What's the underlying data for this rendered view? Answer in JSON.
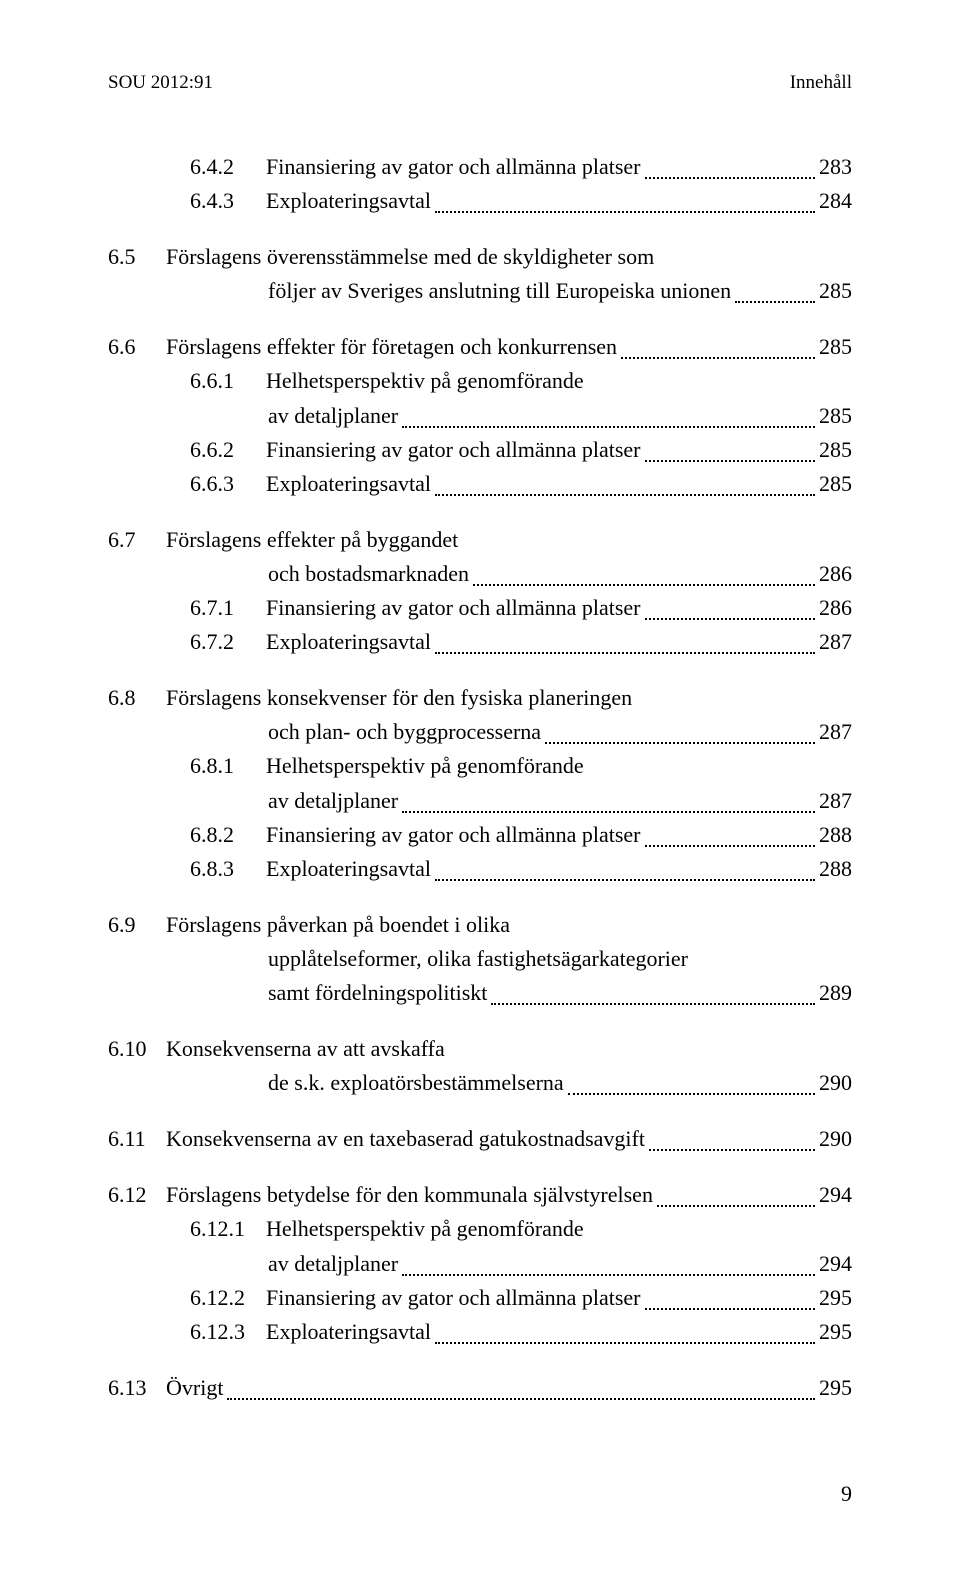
{
  "header": {
    "left": "SOU 2012:91",
    "right": "Innehåll"
  },
  "page_number": "9",
  "toc": {
    "groups": [
      {
        "entries": [
          {
            "level": 2,
            "num": "6.4.2",
            "title": "Finansiering av gator och allmänna platser",
            "page": "283"
          },
          {
            "level": 2,
            "num": "6.4.3",
            "title": "Exploateringsavtal",
            "page": "284"
          }
        ]
      },
      {
        "entries": [
          {
            "level": 1,
            "num": "6.5",
            "title_lines": [
              "Förslagens överensstämmelse med de skyldigheter som",
              "följer av Sveriges anslutning till Europeiska unionen"
            ],
            "page": "285"
          }
        ]
      },
      {
        "entries": [
          {
            "level": 1,
            "num": "6.6",
            "title": "Förslagens effekter för företagen och konkurrensen",
            "page": "285"
          },
          {
            "level": 2,
            "num": "6.6.1",
            "title_lines": [
              "Helhetsperspektiv på genomförande",
              "av detaljplaner"
            ],
            "page": "285"
          },
          {
            "level": 2,
            "num": "6.6.2",
            "title": "Finansiering av gator och allmänna platser",
            "page": "285"
          },
          {
            "level": 2,
            "num": "6.6.3",
            "title": "Exploateringsavtal",
            "page": "285"
          }
        ]
      },
      {
        "entries": [
          {
            "level": 1,
            "num": "6.7",
            "title_lines": [
              "Förslagens effekter på byggandet",
              "och bostadsmarknaden"
            ],
            "page": "286"
          },
          {
            "level": 2,
            "num": "6.7.1",
            "title": "Finansiering av gator och allmänna platser",
            "page": "286"
          },
          {
            "level": 2,
            "num": "6.7.2",
            "title": "Exploateringsavtal",
            "page": "287"
          }
        ]
      },
      {
        "entries": [
          {
            "level": 1,
            "num": "6.8",
            "title_lines": [
              "Förslagens konsekvenser för den fysiska planeringen",
              "och plan- och byggprocesserna"
            ],
            "page": "287"
          },
          {
            "level": 2,
            "num": "6.8.1",
            "title_lines": [
              "Helhetsperspektiv på genomförande",
              "av detaljplaner"
            ],
            "page": "287"
          },
          {
            "level": 2,
            "num": "6.8.2",
            "title": "Finansiering av gator och allmänna platser",
            "page": "288"
          },
          {
            "level": 2,
            "num": "6.8.3",
            "title": "Exploateringsavtal",
            "page": "288"
          }
        ]
      },
      {
        "entries": [
          {
            "level": 1,
            "num": "6.9",
            "title_lines": [
              "Förslagens påverkan på boendet i olika",
              "upplåtelseformer, olika fastighetsägarkategorier",
              "samt fördelningspolitiskt"
            ],
            "page": "289"
          }
        ]
      },
      {
        "entries": [
          {
            "level": 1,
            "num": "6.10",
            "title_lines": [
              "Konsekvenserna av att avskaffa",
              "de s.k. exploatörsbestämmelserna"
            ],
            "page": "290"
          }
        ]
      },
      {
        "entries": [
          {
            "level": 1,
            "num": "6.11",
            "title": "Konsekvenserna av en taxebaserad gatukostnadsavgift",
            "page": "290"
          }
        ]
      },
      {
        "entries": [
          {
            "level": 1,
            "num": "6.12",
            "title": "Förslagens betydelse för den kommunala självstyrelsen",
            "page": "294"
          },
          {
            "level": 2,
            "num": "6.12.1",
            "title_lines": [
              "Helhetsperspektiv på genomförande",
              "av detaljplaner"
            ],
            "page": "294"
          },
          {
            "level": 2,
            "num": "6.12.2",
            "title": "Finansiering av gator och allmänna platser",
            "page": "295"
          },
          {
            "level": 2,
            "num": "6.12.3",
            "title": "Exploateringsavtal",
            "page": "295"
          }
        ]
      },
      {
        "entries": [
          {
            "level": 1,
            "num": "6.13",
            "title": "Övrigt",
            "page": "295"
          }
        ]
      }
    ]
  }
}
